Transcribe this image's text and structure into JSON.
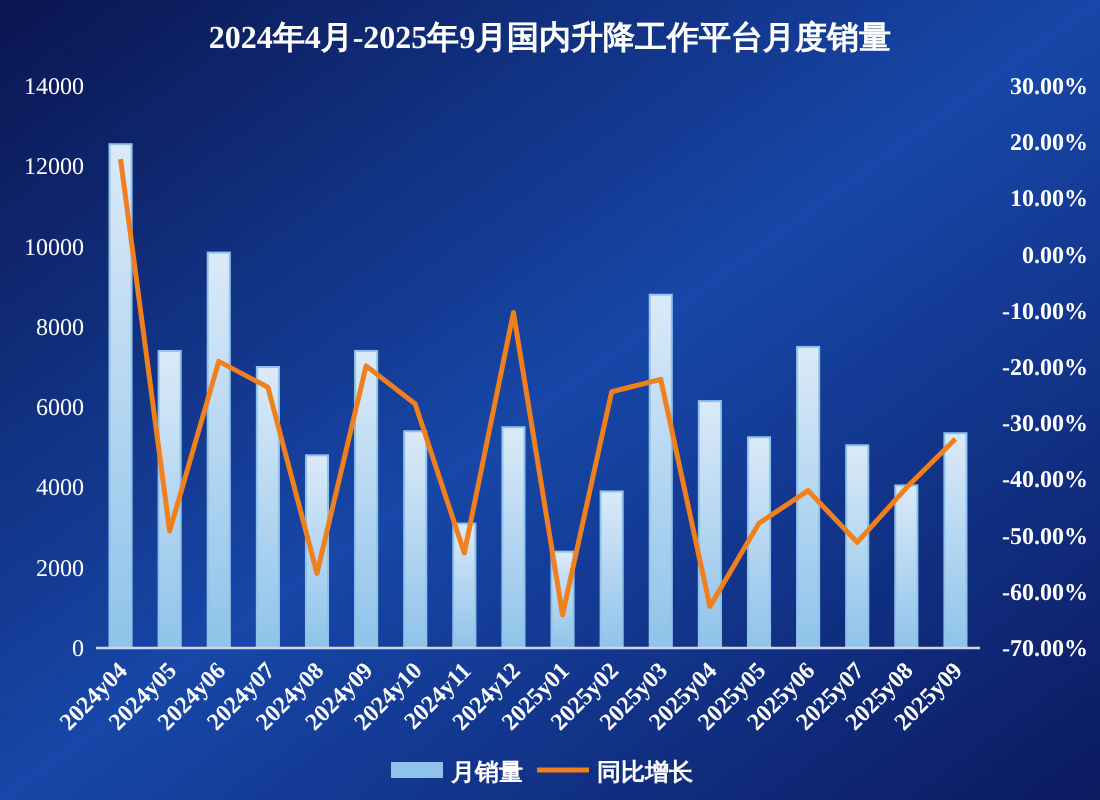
{
  "chart_data": {
    "type": "bar",
    "title": "2024年4月-2025年9月国内升降工作平台月度销量",
    "categories": [
      "2024y04",
      "2024y05",
      "2024y06",
      "2024y07",
      "2024y08",
      "2024y09",
      "2024y10",
      "2024y11",
      "2024y12",
      "2025y01",
      "2025y02",
      "2025y03",
      "2025y04",
      "2025y05",
      "2025y06",
      "2025y07",
      "2025y08",
      "2025y09"
    ],
    "series": [
      {
        "name": "月销量",
        "color": "#8fc3ea",
        "values": [
          12550,
          7400,
          9850,
          7000,
          4800,
          7400,
          5400,
          3100,
          5500,
          2400,
          3900,
          8800,
          6150,
          5250,
          7500,
          5050,
          4050,
          5350
        ]
      },
      {
        "name": "同比增长",
        "type": "line",
        "axis": "y2",
        "color": "#f07f1e",
        "values": [
          17,
          -49.2,
          -19,
          -23.6,
          -56.7,
          -19.8,
          -26.6,
          -53.1,
          -10.3,
          -64.1,
          -24.4,
          -22.2,
          -62.6,
          -47.8,
          -42,
          -51.2,
          -41.5,
          -32.8
        ]
      }
    ],
    "ylim": [
      0,
      14000
    ],
    "yticks": [
      0,
      2000,
      4000,
      6000,
      8000,
      10000,
      12000,
      14000
    ],
    "y2lim": [
      -70,
      30
    ],
    "y2ticks": [
      {
        "value": 30,
        "label": "30.00%"
      },
      {
        "value": 20,
        "label": "20.00%"
      },
      {
        "value": 10,
        "label": "10.00%"
      },
      {
        "value": 0,
        "label": "0.00%"
      },
      {
        "value": -10,
        "label": "-10.00%"
      },
      {
        "value": -20,
        "label": "-20.00%"
      },
      {
        "value": -30,
        "label": "-30.00%"
      },
      {
        "value": -40,
        "label": "-40.00%"
      },
      {
        "value": -50,
        "label": "-50.00%"
      },
      {
        "value": -60,
        "label": "-60.00%"
      },
      {
        "value": -70,
        "label": "-70.00%"
      }
    ],
    "grid": false,
    "legend": "bottom",
    "marker": "none"
  }
}
